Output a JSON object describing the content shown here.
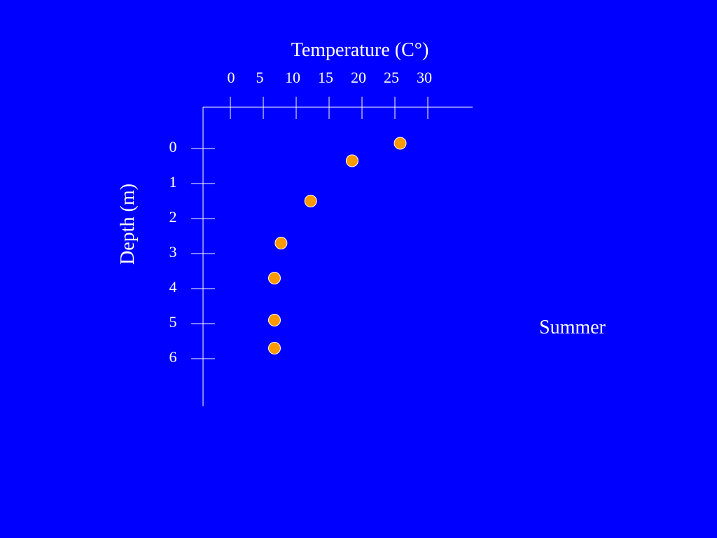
{
  "slide": {
    "season_label": "Summer",
    "background_color": "#0000ff",
    "text_color": "#ffffff"
  },
  "chart_data": {
    "type": "scatter",
    "title": "",
    "xlabel": "Temperature (C°)",
    "ylabel": "Depth (m)",
    "x_ticks": [
      0,
      5,
      10,
      15,
      20,
      25,
      30
    ],
    "y_ticks": [
      0,
      1,
      2,
      3,
      4,
      5,
      6
    ],
    "xlim": [
      0,
      30
    ],
    "ylim": [
      0,
      6
    ],
    "x_axis_position": "top",
    "y_axis_inverted": true,
    "grid": false,
    "marker_color": "#ff9900",
    "points": [
      {
        "x": 25.8,
        "y": -0.15
      },
      {
        "x": 18.5,
        "y": 0.35
      },
      {
        "x": 12.2,
        "y": 1.5
      },
      {
        "x": 7.7,
        "y": 2.7
      },
      {
        "x": 6.7,
        "y": 3.7
      },
      {
        "x": 6.7,
        "y": 4.9
      },
      {
        "x": 6.7,
        "y": 5.7
      }
    ]
  }
}
